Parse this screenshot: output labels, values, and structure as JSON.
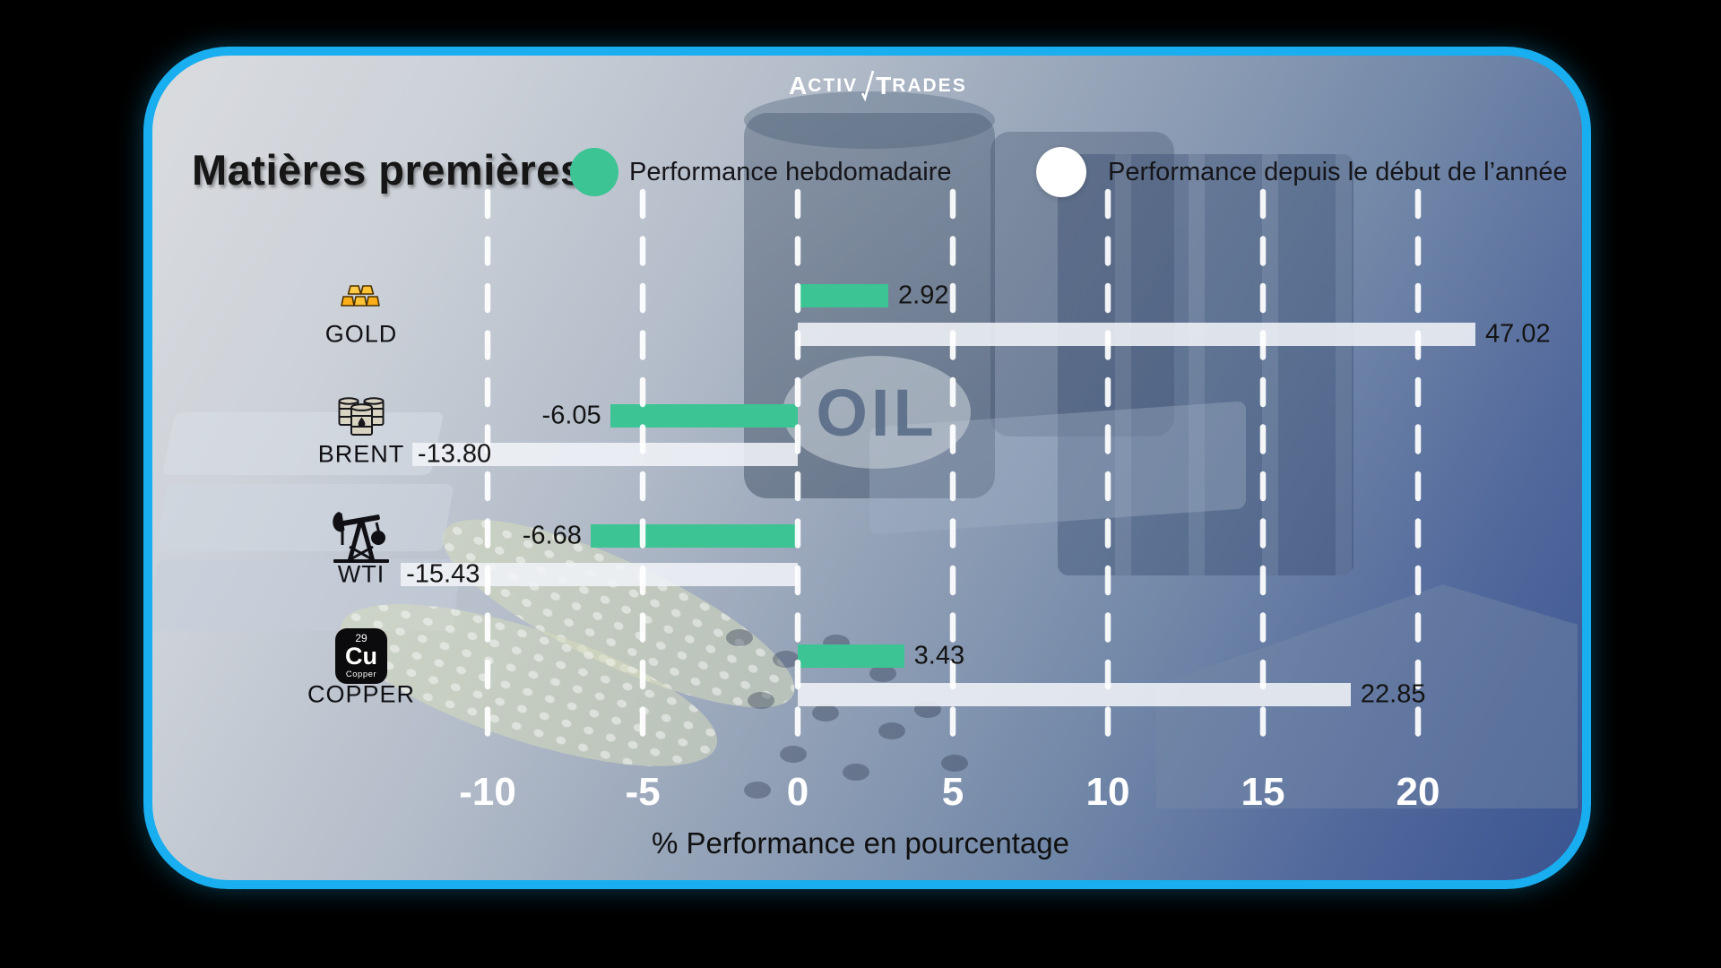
{
  "page": {
    "background_color": "#000000",
    "card_border_color": "#18AEEF"
  },
  "logo": {
    "brand_prefix": "Activ",
    "brand_suffix": "Trades"
  },
  "header": {
    "title": "Matières premières",
    "legend": [
      {
        "label": "Performance hebdomadaire",
        "color": "#3CC494"
      },
      {
        "label": "Performance depuis le début de l’année",
        "color": "#FFFFFF"
      }
    ]
  },
  "background": {
    "oil_label": "OIL"
  },
  "icons": {
    "copper_tile": {
      "number": "29",
      "symbol": "Cu",
      "name": "Copper"
    }
  },
  "chart_data": {
    "type": "bar",
    "orientation": "horizontal",
    "title": "Matières premières",
    "categories": [
      "GOLD",
      "BRENT",
      "WTI",
      "COPPER"
    ],
    "series": [
      {
        "name": "Performance hebdomadaire",
        "color": "#3CC494",
        "values": [
          2.92,
          -6.05,
          -6.68,
          3.43
        ]
      },
      {
        "name": "Performance depuis le début de l’année",
        "color": "#F0F3F7",
        "values": [
          47.02,
          -13.8,
          -15.43,
          22.85
        ]
      }
    ],
    "xlabel": "% Performance en pourcentage",
    "xticks": [
      -10,
      -5,
      0,
      5,
      10,
      15,
      20
    ],
    "xlim": [
      -13,
      23.5
    ],
    "grid": "vertical dashed white",
    "legend_position": "top",
    "rows": [
      {
        "category": "GOLD",
        "icon": "gold-bars",
        "weekly_value": 2.92,
        "weekly_label": "2.92",
        "ytd_value": 47.02,
        "ytd_label": "47.02",
        "ytd_visual_extent": 21.85
      },
      {
        "category": "BRENT",
        "icon": "oil-barrels",
        "weekly_value": -6.05,
        "weekly_label": "-6.05",
        "ytd_value": -13.8,
        "ytd_label": "-13.80",
        "ytd_visual_extent": -12.43
      },
      {
        "category": "WTI",
        "icon": "pump-jack",
        "weekly_value": -6.68,
        "weekly_label": "-6.68",
        "ytd_value": -15.43,
        "ytd_label": "-15.43",
        "ytd_visual_extent": -12.8
      },
      {
        "category": "COPPER",
        "icon": "copper-element",
        "weekly_value": 3.43,
        "weekly_label": "3.43",
        "ytd_value": 22.85,
        "ytd_label": "22.85",
        "ytd_visual_extent": 17.83
      }
    ],
    "note_visual": "In the source image the white YTD bars are drawn compressed/clipped; ytd_visual_extent is the apparent bar length in axis units."
  }
}
